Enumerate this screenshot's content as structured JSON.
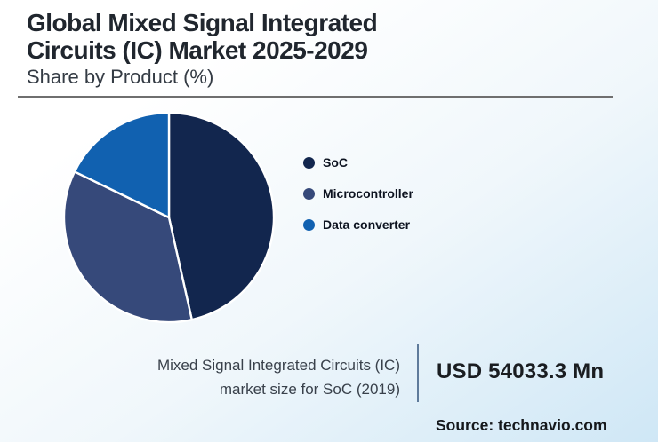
{
  "header": {
    "title_line1": "Global Mixed Signal Integrated",
    "title_line2": "Circuits (IC) Market 2025-2029",
    "subtitle": "Share by Product (%)"
  },
  "chart_data": {
    "type": "pie",
    "title": "Global Mixed Signal Integrated Circuits (IC) Market 2025-2029",
    "subtitle": "Share by Product (%)",
    "unit": "%",
    "start_angle_deg": 0,
    "direction": "clockwise",
    "legend_position": "right",
    "slices": [
      {
        "label": "SoC",
        "value": 46.5,
        "color": "#12264e"
      },
      {
        "label": "Microcontroller",
        "value": 35.7,
        "color": "#36497a"
      },
      {
        "label": "Data converter",
        "value": 17.8,
        "color": "#1161b0"
      }
    ],
    "slice_separator_color": "#ffffff"
  },
  "footnote": {
    "line1": "Mixed Signal Integrated Circuits (IC)",
    "line2": "market size for SoC (2019)",
    "value": "USD 54033.3 Mn"
  },
  "source": {
    "label": "Source: technavio.com"
  }
}
